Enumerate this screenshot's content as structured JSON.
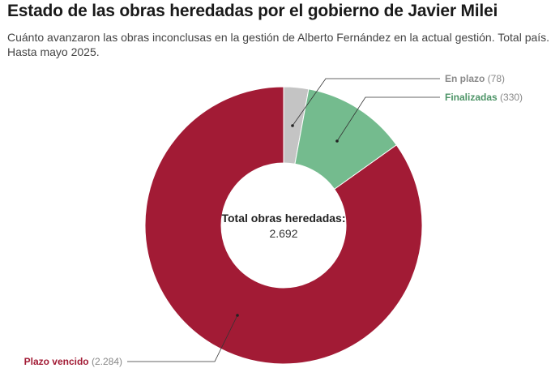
{
  "title": "Estado de las obras heredadas por el gobierno de Javier Milei",
  "subtitle": "Cuánto avanzaron las obras inconclusas en la gestión de Alberto Fernández en la actual gestión. Total país. Hasta mayo 2025.",
  "chart_data": {
    "type": "pie",
    "variant": "donut",
    "center_label": "Total obras heredadas:",
    "center_value": "2.692",
    "slices": [
      {
        "name": "En plazo",
        "value": 78,
        "value_label": "(78)",
        "color": "#c4c4c4",
        "label_color": "#8a8a8a"
      },
      {
        "name": "Finalizadas",
        "value": 330,
        "value_label": "(330)",
        "color": "#74bb8e",
        "label_color": "#4d9467"
      },
      {
        "name": "Plazo vencido",
        "value": 2284,
        "value_label": "(2.284)",
        "color": "#a21b35",
        "label_color": "#a21b35"
      }
    ]
  }
}
